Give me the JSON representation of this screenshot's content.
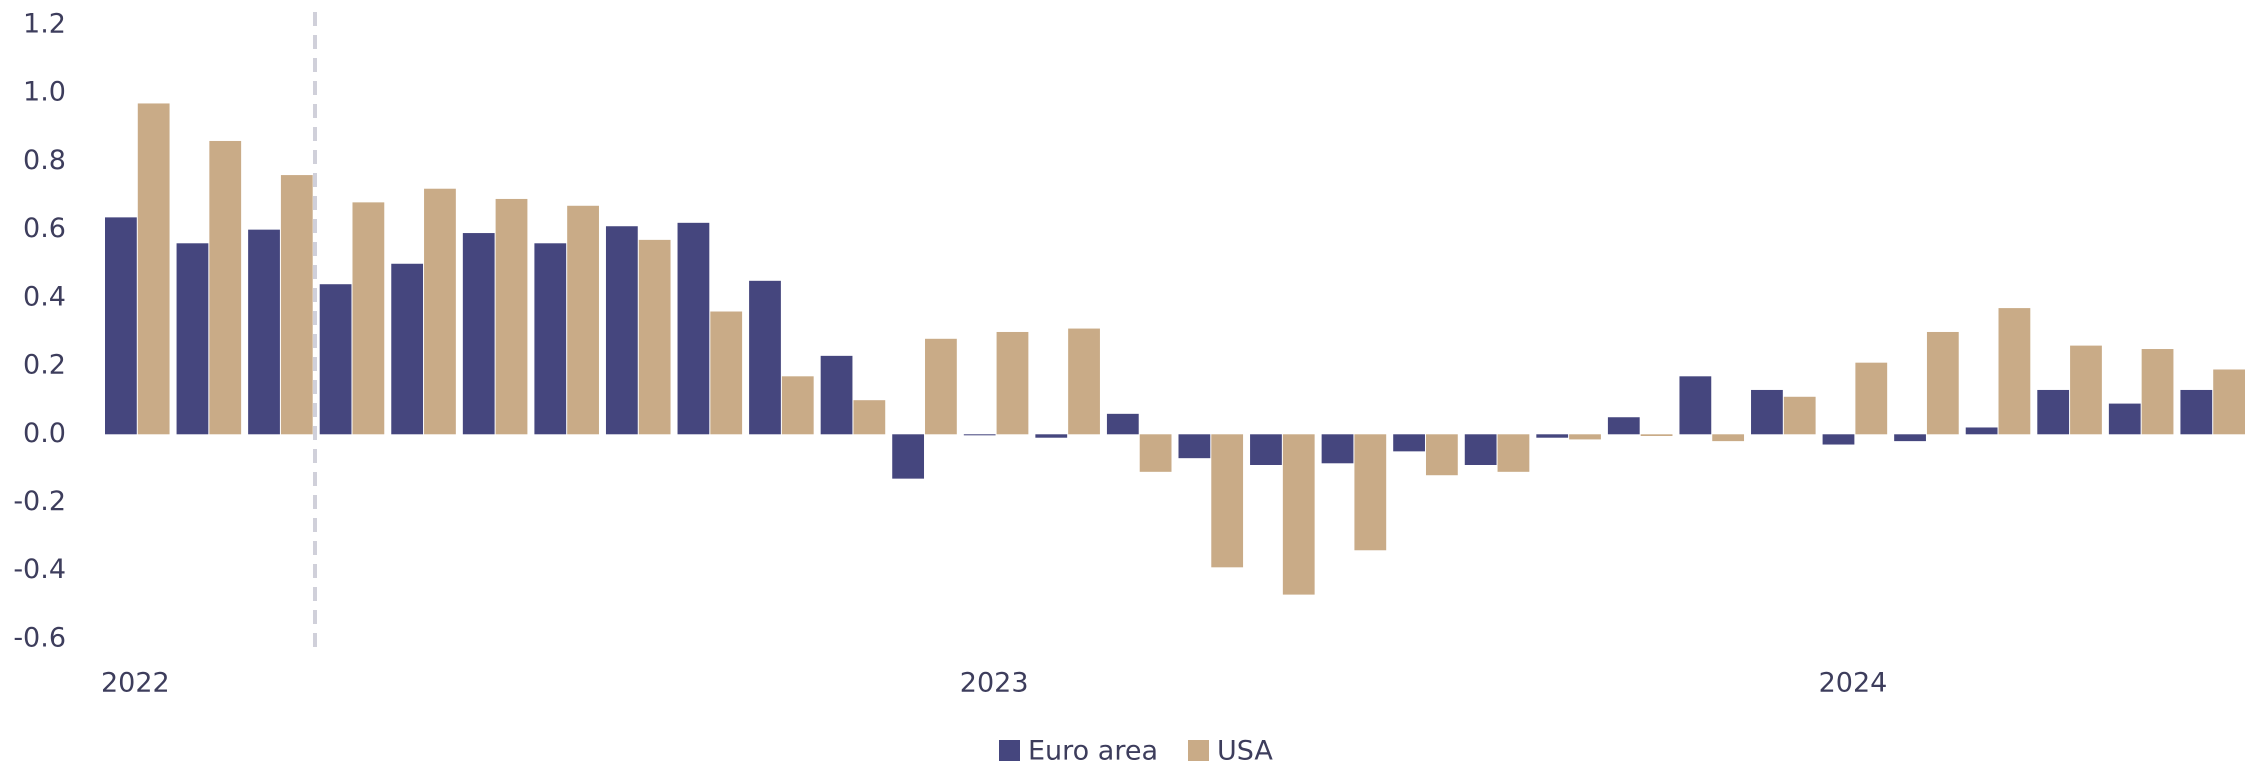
{
  "chart_data": {
    "type": "bar",
    "categories": [
      "2022",
      null,
      null,
      null,
      null,
      null,
      null,
      null,
      null,
      null,
      null,
      null,
      "2023",
      null,
      null,
      null,
      null,
      null,
      null,
      null,
      null,
      null,
      null,
      null,
      "2024",
      null,
      null,
      null,
      null,
      null
    ],
    "series": [
      {
        "name": "Euro area",
        "color": "#45467e",
        "values": [
          0.636,
          0.56,
          0.6,
          0.44,
          0.5,
          0.59,
          0.56,
          0.61,
          0.62,
          0.45,
          0.23,
          -0.13,
          -0.003,
          -0.01,
          0.06,
          -0.07,
          -0.09,
          -0.085,
          -0.05,
          -0.09,
          -0.01,
          0.05,
          0.17,
          0.13,
          -0.03,
          -0.02,
          0.02,
          0.13,
          0.09,
          0.13
        ]
      },
      {
        "name": "USA",
        "color": "#c9ab87",
        "values": [
          0.97,
          0.86,
          0.76,
          0.68,
          0.72,
          0.69,
          0.67,
          0.57,
          0.36,
          0.17,
          0.1,
          0.28,
          0.3,
          0.31,
          -0.11,
          -0.39,
          -0.47,
          -0.34,
          -0.12,
          -0.11,
          -0.015,
          -0.005,
          -0.02,
          0.11,
          0.21,
          0.3,
          0.37,
          0.26,
          0.25,
          0.19
        ]
      }
    ],
    "ylim": [
      -0.65,
      1.2
    ],
    "yticks": [
      -0.6,
      -0.4,
      -0.2,
      {
        "value": 0,
        "label": "0.0"
      },
      0.2,
      0.4,
      0.6,
      0.8,
      {
        "value": 1,
        "label": "1.0"
      },
      1.2
    ],
    "legend": "bottom"
  }
}
